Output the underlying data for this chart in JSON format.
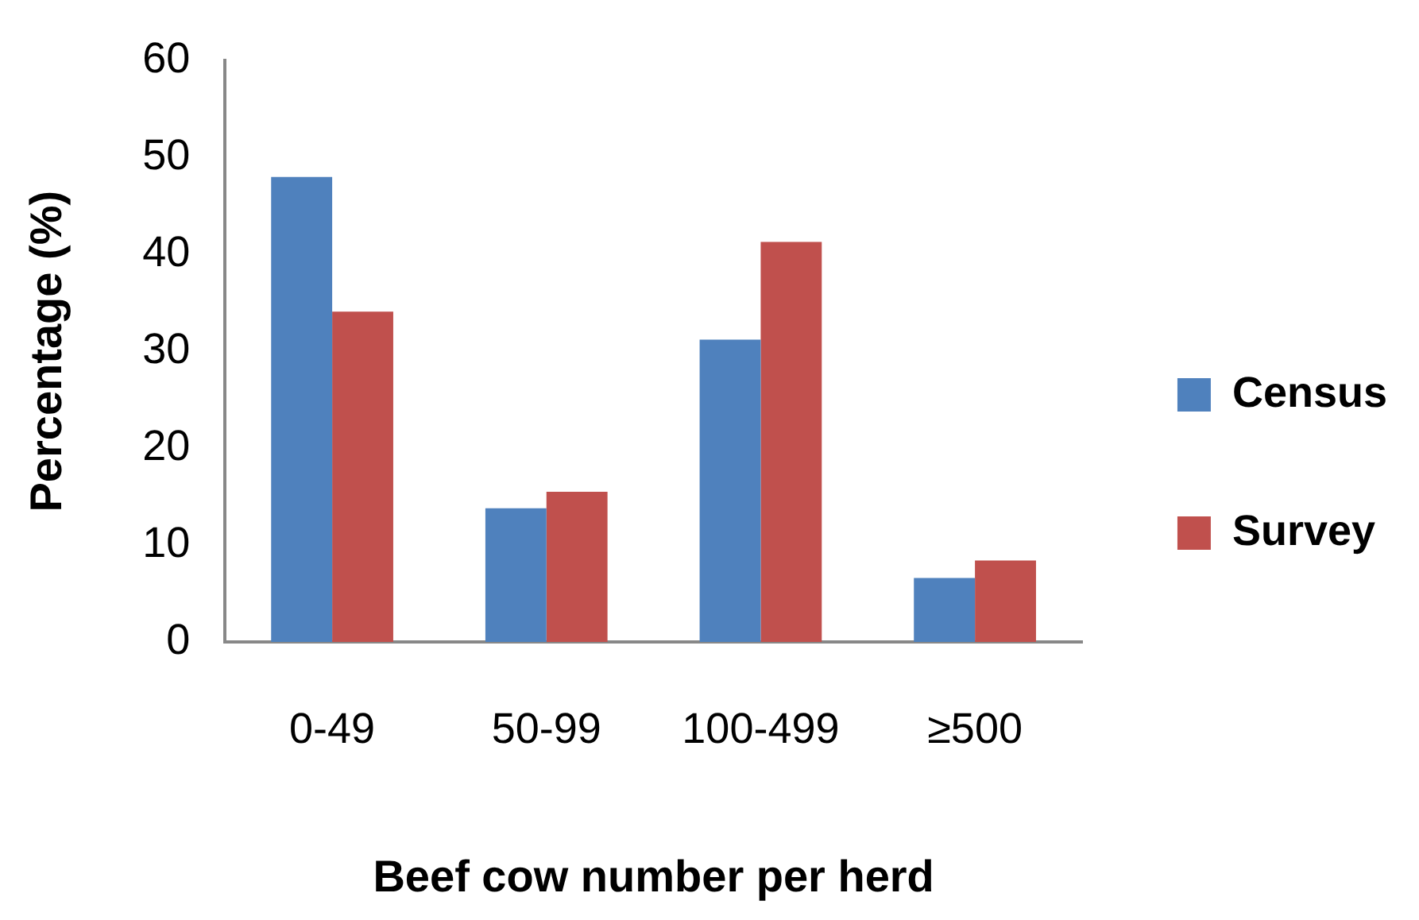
{
  "chart_data": {
    "type": "bar",
    "xlabel": "Beef cow number per herd",
    "ylabel": "Percentage (%)",
    "categories": [
      "0-49",
      "50-99",
      "100-499",
      "≥500"
    ],
    "series": [
      {
        "name": "Census",
        "color": "#4f81bd",
        "values": [
          48.0,
          13.8,
          31.2,
          6.6
        ]
      },
      {
        "name": "Survey",
        "color": "#c0504d",
        "values": [
          34.1,
          15.5,
          41.3,
          8.4
        ]
      }
    ],
    "ylim": [
      0,
      60
    ],
    "yticks": [
      0,
      10,
      20,
      30,
      40,
      50,
      60
    ],
    "grid": false,
    "legend": "right"
  }
}
